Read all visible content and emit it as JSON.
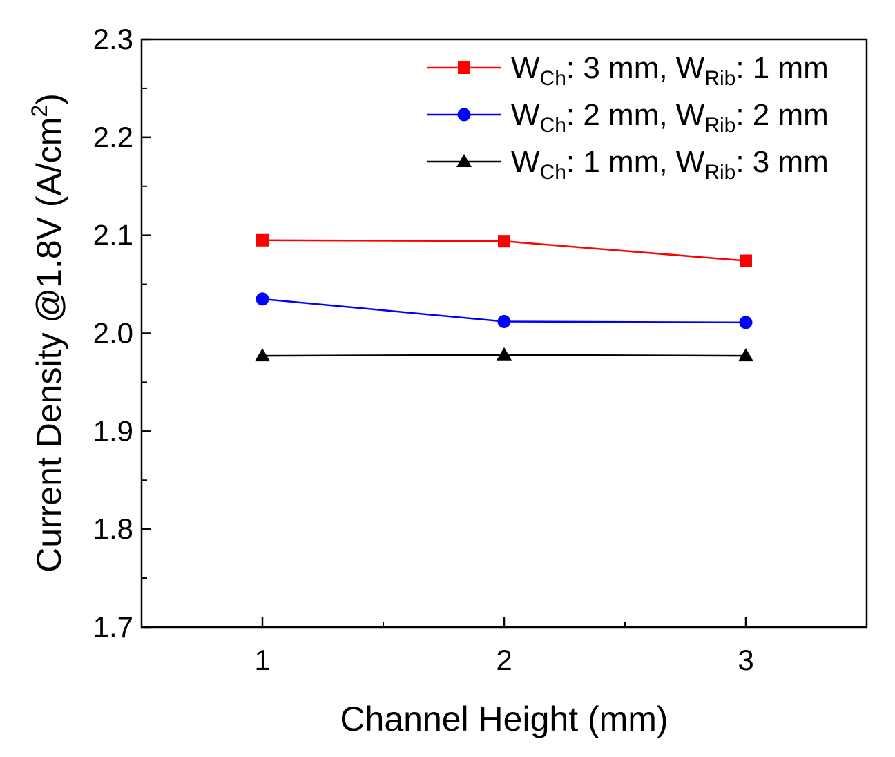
{
  "chart_data": {
    "type": "line",
    "title": "",
    "xlabel": "Channel Height (mm)",
    "ylabel": "Current Density @1.8V (A/cm²)",
    "ylabel_parts": {
      "main": "Current Density @1.8V (A/cm",
      "sup": "2",
      "end": ")"
    },
    "x": [
      1,
      2,
      3
    ],
    "xlim": [
      0.5,
      3.5
    ],
    "ylim": [
      1.7,
      2.3
    ],
    "x_ticks": [
      "1",
      "2",
      "3"
    ],
    "y_ticks": [
      "1.7",
      "1.8",
      "1.9",
      "2.0",
      "2.1",
      "2.2",
      "2.3"
    ],
    "legend_position": "top-right",
    "series": [
      {
        "name": "WCh: 3 mm, WRib: 1 mm",
        "label_parts": {
          "w1": "W",
          "s1": "Ch",
          "t1": ": 3 mm, W",
          "s2": "Rib",
          "t2": ": 1 mm"
        },
        "color": "#ff0000",
        "marker": "square",
        "values": [
          2.095,
          2.094,
          2.074
        ]
      },
      {
        "name": "WCh: 2 mm, WRib: 2 mm",
        "label_parts": {
          "w1": "W",
          "s1": "Ch",
          "t1": ": 2 mm, W",
          "s2": "Rib",
          "t2": ": 2 mm"
        },
        "color": "#0000ff",
        "marker": "circle",
        "values": [
          2.035,
          2.012,
          2.011
        ]
      },
      {
        "name": "WCh: 1 mm, WRib: 3 mm",
        "label_parts": {
          "w1": "W",
          "s1": "Ch",
          "t1": ": 1 mm, W",
          "s2": "Rib",
          "t2": ": 3 mm"
        },
        "color": "#000000",
        "marker": "triangle",
        "values": [
          1.977,
          1.978,
          1.977
        ]
      }
    ]
  }
}
